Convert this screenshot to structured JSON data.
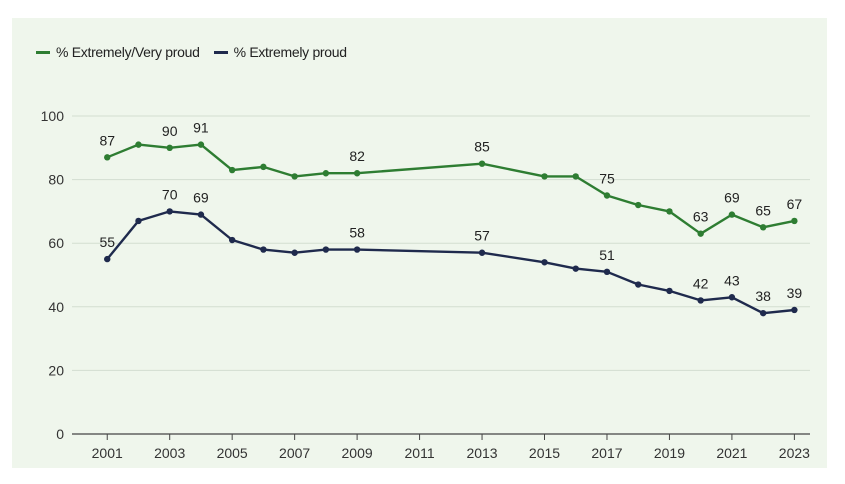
{
  "chart_data": {
    "type": "line",
    "title": "",
    "xlabel": "",
    "ylabel": "",
    "ylim": [
      0,
      100
    ],
    "xlim": [
      2000,
      2023.5
    ],
    "yticks": [
      0,
      20,
      40,
      60,
      80,
      100
    ],
    "xticks": [
      2001,
      2003,
      2005,
      2007,
      2009,
      2011,
      2013,
      2015,
      2017,
      2019,
      2021,
      2023
    ],
    "legend_position": "top-left",
    "grid": true,
    "series": [
      {
        "name": "% Extremely/Very proud",
        "color": "#2e7d32",
        "x": [
          2001,
          2002,
          2003,
          2004,
          2005,
          2006,
          2007,
          2008,
          2009,
          2013,
          2015,
          2016,
          2017,
          2018,
          2019,
          2020,
          2021,
          2022,
          2023
        ],
        "values": [
          87,
          91,
          90,
          91,
          83,
          84,
          81,
          82,
          82,
          85,
          81,
          81,
          75,
          72,
          70,
          63,
          69,
          65,
          67
        ],
        "labeled": [
          2001,
          2003,
          2004,
          2009,
          2013,
          2017,
          2020,
          2021,
          2022,
          2023
        ]
      },
      {
        "name": "% Extremely proud",
        "color": "#1f2a4d",
        "x": [
          2001,
          2002,
          2003,
          2004,
          2005,
          2006,
          2007,
          2008,
          2009,
          2013,
          2015,
          2016,
          2017,
          2018,
          2019,
          2020,
          2021,
          2022,
          2023
        ],
        "values": [
          55,
          67,
          70,
          69,
          61,
          58,
          57,
          58,
          58,
          57,
          54,
          52,
          51,
          47,
          45,
          42,
          43,
          38,
          39
        ],
        "labeled": [
          2001,
          2003,
          2004,
          2009,
          2013,
          2017,
          2020,
          2021,
          2022,
          2023
        ]
      }
    ]
  }
}
